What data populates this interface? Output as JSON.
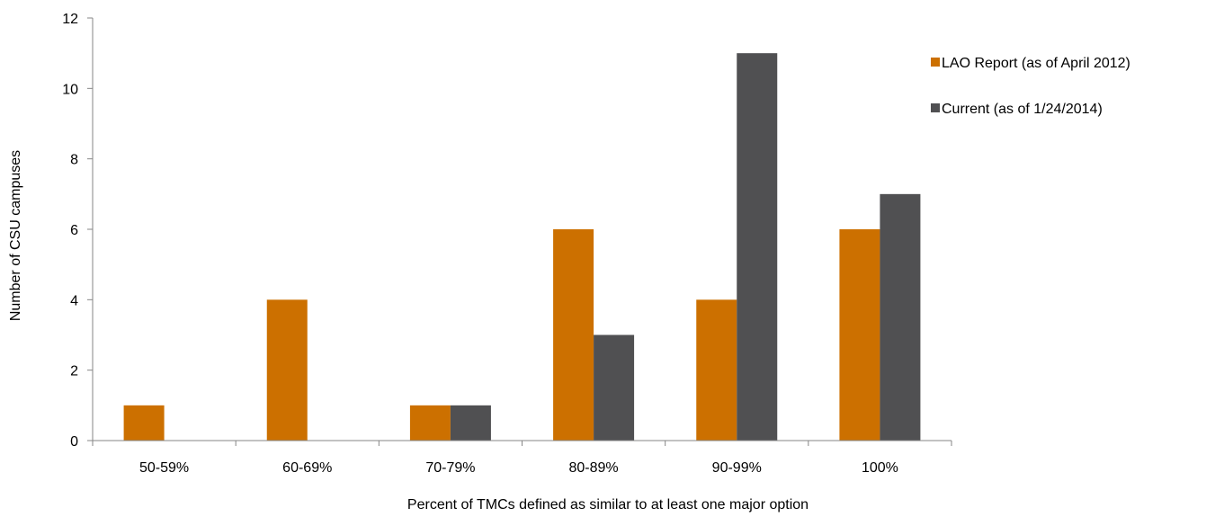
{
  "chart_data": {
    "type": "bar",
    "title": "",
    "xlabel": "Percent of TMCs defined as similar to at least one major option",
    "ylabel": "Number of CSU campuses",
    "categories": [
      "50-59%",
      "60-69%",
      "70-79%",
      "80-89%",
      "90-99%",
      "100%"
    ],
    "series": [
      {
        "name": "LAO Report (as of April 2012)",
        "values": [
          1,
          4,
          1,
          6,
          4,
          6
        ],
        "color": "#cc7000"
      },
      {
        "name": "Current (as of 1/24/2014)",
        "values": [
          0,
          0,
          1,
          3,
          11,
          7
        ],
        "color": "#505052"
      }
    ],
    "ylim": [
      0,
      12
    ],
    "yticks": [
      0,
      2,
      4,
      6,
      8,
      10,
      12
    ],
    "grid": false,
    "legend_position": "top-right"
  }
}
